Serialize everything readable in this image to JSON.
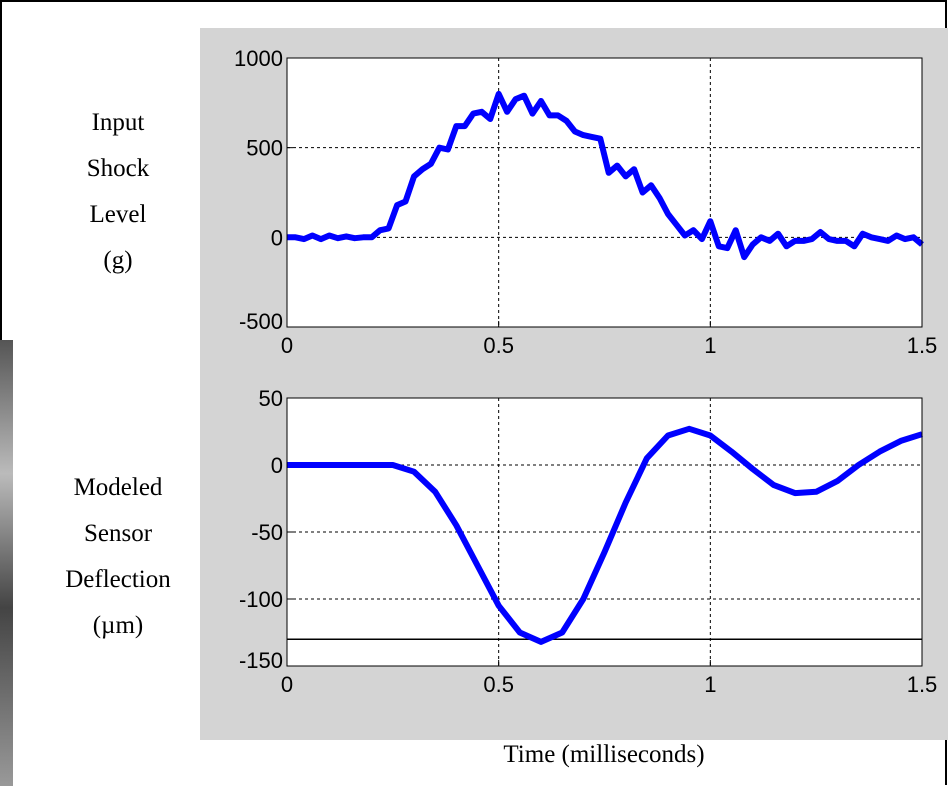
{
  "chart_data": [
    {
      "type": "line",
      "ylabel": [
        "Input",
        "Shock",
        "Level",
        "(g)"
      ],
      "x": [
        0,
        0.02,
        0.04,
        0.06,
        0.08,
        0.1,
        0.12,
        0.14,
        0.16,
        0.18,
        0.2,
        0.22,
        0.24,
        0.26,
        0.28,
        0.3,
        0.32,
        0.34,
        0.36,
        0.38,
        0.4,
        0.42,
        0.44,
        0.46,
        0.48,
        0.5,
        0.52,
        0.54,
        0.56,
        0.58,
        0.6,
        0.62,
        0.64,
        0.66,
        0.68,
        0.7,
        0.72,
        0.74,
        0.76,
        0.78,
        0.8,
        0.82,
        0.84,
        0.86,
        0.88,
        0.9,
        0.92,
        0.94,
        0.96,
        0.98,
        1,
        1.02,
        1.04,
        1.06,
        1.08,
        1.1,
        1.12,
        1.14,
        1.16,
        1.18,
        1.2,
        1.22,
        1.24,
        1.26,
        1.28,
        1.3,
        1.32,
        1.34,
        1.36,
        1.38,
        1.4,
        1.42,
        1.44,
        1.46,
        1.48,
        1.5
      ],
      "series": [
        {
          "color": "#0000ff",
          "values": [
            0,
            0,
            -10,
            10,
            -10,
            10,
            -5,
            5,
            -5,
            0,
            0,
            40,
            50,
            180,
            200,
            340,
            380,
            410,
            500,
            490,
            620,
            620,
            690,
            700,
            660,
            800,
            700,
            770,
            790,
            690,
            760,
            680,
            680,
            650,
            590,
            570,
            560,
            550,
            360,
            400,
            340,
            380,
            250,
            290,
            220,
            130,
            70,
            10,
            40,
            -10,
            90,
            -50,
            -60,
            40,
            -110,
            -40,
            0,
            -20,
            20,
            -50,
            -20,
            -20,
            -10,
            30,
            -10,
            -20,
            -20,
            -50,
            20,
            0,
            -10,
            -20,
            10,
            -10,
            0,
            -40
          ]
        }
      ],
      "xlim": [
        0,
        1.5
      ],
      "xticks": [
        0,
        0.5,
        1,
        1.5
      ],
      "ylim": [
        -500,
        1000
      ],
      "yticks": [
        -500,
        0,
        500,
        1000
      ],
      "grid": true
    },
    {
      "type": "line",
      "ylabel": [
        "Modeled",
        "Sensor",
        "Deflection",
        "(µm)"
      ],
      "xlabel": "Time (milliseconds)",
      "x": [
        0,
        0.05,
        0.1,
        0.15,
        0.2,
        0.25,
        0.3,
        0.35,
        0.4,
        0.45,
        0.5,
        0.55,
        0.6,
        0.65,
        0.7,
        0.75,
        0.8,
        0.85,
        0.9,
        0.95,
        1,
        1.05,
        1.1,
        1.15,
        1.2,
        1.25,
        1.3,
        1.35,
        1.4,
        1.45,
        1.5
      ],
      "series": [
        {
          "color": "#0000ff",
          "values": [
            0,
            0,
            0,
            0,
            0,
            0,
            -5,
            -20,
            -45,
            -75,
            -105,
            -125,
            -132,
            -125,
            -100,
            -65,
            -28,
            5,
            22,
            27,
            22,
            10,
            -3,
            -15,
            -21,
            -20,
            -12,
            0,
            10,
            18,
            23
          ]
        }
      ],
      "hlines": [
        {
          "value": -130,
          "color": "#000000"
        }
      ],
      "xlim": [
        0,
        1.5
      ],
      "xticks": [
        0,
        0.5,
        1,
        1.5
      ],
      "ylim": [
        -150,
        50
      ],
      "yticks": [
        -150,
        -100,
        -50,
        0,
        50
      ],
      "grid": true
    }
  ]
}
